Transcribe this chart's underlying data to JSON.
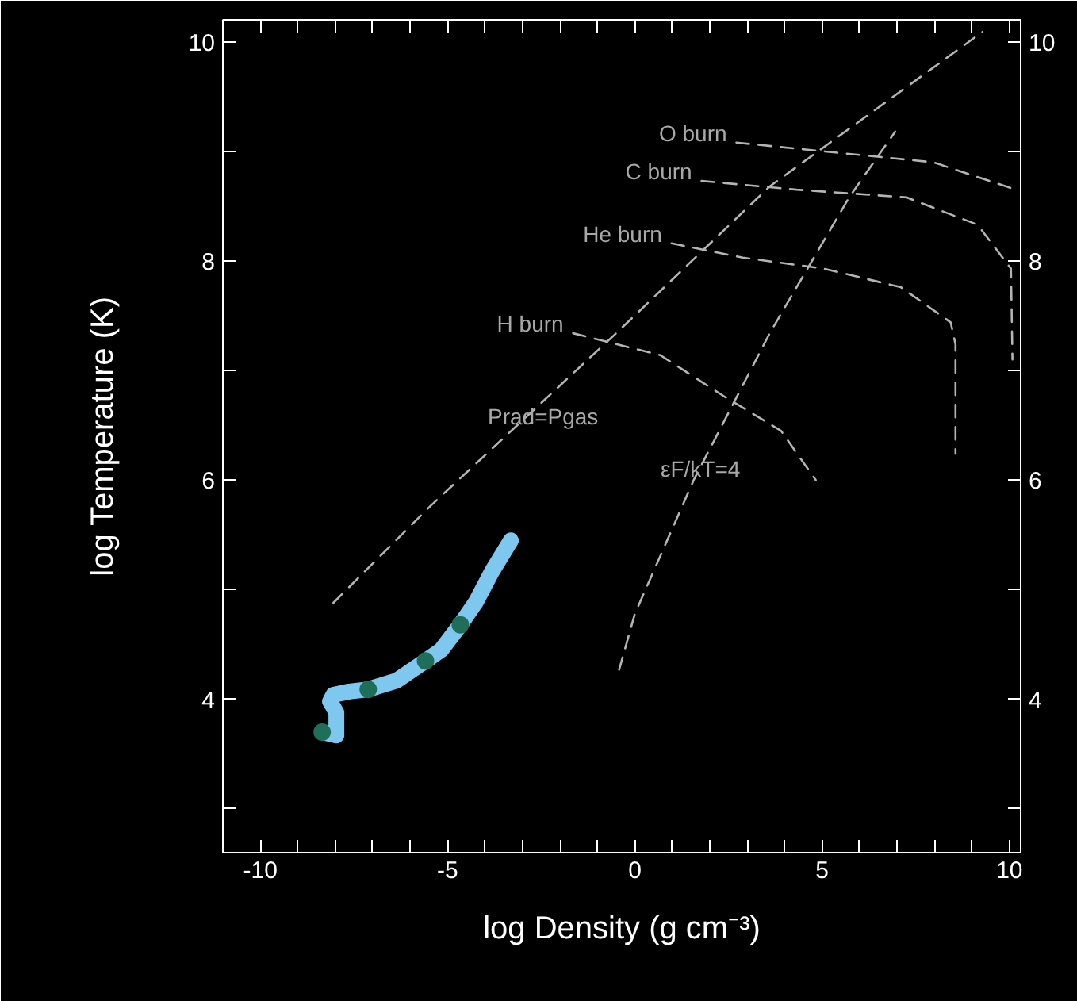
{
  "chart_data": {
    "type": "line",
    "xlabel": "log Density (g cm⁻³)",
    "ylabel": "log Temperature (K)",
    "xlim": [
      -11,
      10.3
    ],
    "ylim": [
      2.6,
      10.2
    ],
    "y2lim": [
      2.6,
      10.2
    ],
    "xticks": [
      -10,
      -5,
      0,
      5,
      10,
      {
        "value": -9,
        "label": null
      },
      {
        "value": -8,
        "label": null
      },
      {
        "value": -7,
        "label": null
      },
      {
        "value": -6,
        "label": null
      },
      {
        "value": -4,
        "label": null
      },
      {
        "value": -3,
        "label": null
      },
      {
        "value": -2,
        "label": null
      },
      {
        "value": -1,
        "label": null
      },
      {
        "value": 1,
        "label": null
      },
      {
        "value": 2,
        "label": null
      },
      {
        "value": 3,
        "label": null
      },
      {
        "value": 4,
        "label": null
      },
      {
        "value": 6,
        "label": null
      },
      {
        "value": 7,
        "label": null
      },
      {
        "value": 8,
        "label": null
      },
      {
        "value": 9,
        "label": null
      }
    ],
    "yticks": [
      4,
      6,
      8,
      10,
      {
        "value": 3,
        "label": null
      },
      {
        "value": 5,
        "label": null
      },
      {
        "value": 7,
        "label": null
      },
      {
        "value": 9,
        "label": null
      }
    ],
    "y2ticks": [
      4,
      6,
      8,
      10,
      {
        "value": 3,
        "label": null
      },
      {
        "value": 5,
        "label": null
      },
      {
        "value": 7,
        "label": null
      },
      {
        "value": 9,
        "label": null
      }
    ],
    "grid": false,
    "series": [
      {
        "line_style": "dashed",
        "color": "#b4b4b4",
        "x": [
          -8.05,
          -5.47,
          -0.5,
          3.6,
          9.28
        ],
        "values": [
          4.88,
          5.76,
          7.34,
          8.68,
          10.09
        ]
      },
      {
        "line_style": "dashed",
        "color": "#b4b4b4",
        "x": [
          -0.42,
          0,
          1.57,
          3.6,
          5.72,
          6.95
        ],
        "values": [
          4.27,
          4.78,
          6.0,
          7.34,
          8.58,
          9.18
        ]
      },
      {
        "name": "H burn",
        "line_style": "dashed",
        "color": "#b4b4b4",
        "x": [
          -1.65,
          0.68,
          2.4,
          3.9,
          4.83
        ],
        "values": [
          7.34,
          7.14,
          6.76,
          6.45,
          6.0
        ]
      },
      {
        "name": "He burn",
        "line_style": "dashed",
        "color": "#b4b4b4",
        "x": [
          0.98,
          2.88,
          5.04,
          7.1,
          8.43,
          8.56,
          8.56
        ],
        "values": [
          8.16,
          8.03,
          7.93,
          7.76,
          7.44,
          7.24,
          6.24
        ]
      },
      {
        "name": "C burn",
        "line_style": "dashed",
        "color": "#b4b4b4",
        "x": [
          1.78,
          4.32,
          7.25,
          9.15,
          10.04,
          10.08
        ],
        "values": [
          8.73,
          8.65,
          8.58,
          8.33,
          7.93,
          7.1
        ]
      },
      {
        "name": "O burn",
        "line_style": "dashed",
        "color": "#b4b4b4",
        "x": [
          2.71,
          5.04,
          7.97,
          10.17
        ],
        "values": [
          9.08,
          9.0,
          8.9,
          8.65
        ]
      },
      {
        "line_style": "solid",
        "color": "#7ec8f0",
        "x": [
          -8.35,
          -7.97,
          -7.97,
          -8.14,
          -8.05,
          -7.63,
          -7.12,
          -6.36,
          -5.59,
          -5.17,
          -4.66,
          -4.24,
          -3.81,
          -3.31
        ],
        "values": [
          3.7,
          3.67,
          3.88,
          3.98,
          4.04,
          4.07,
          4.09,
          4.17,
          4.35,
          4.45,
          4.68,
          4.89,
          5.17,
          5.45
        ]
      },
      {
        "type": "scatter",
        "marker": "circle",
        "color": "#1f6e5a",
        "x": [
          -8.35,
          -7.12,
          -5.59,
          -4.66
        ],
        "values": [
          3.7,
          4.09,
          4.35,
          4.68
        ]
      }
    ],
    "annotations": [
      "Prad=Pgas",
      "εF/kT=4"
    ]
  }
}
